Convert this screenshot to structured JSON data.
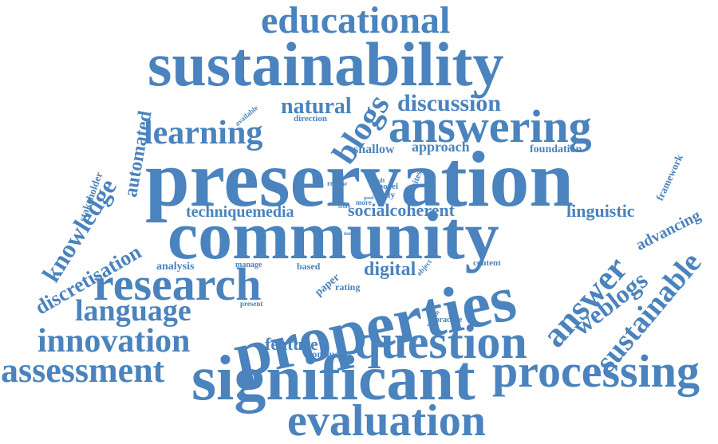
{
  "accent_color": "#4a83bd",
  "words": [
    "educational",
    "sustainability",
    "natural",
    "blogs",
    "discussion",
    "answering",
    "available",
    "direction",
    "learning",
    "automated",
    "shallow",
    "approach",
    "foundation",
    "stakeholder",
    "preservation",
    "framework",
    "result",
    "review",
    "novel",
    "websites",
    "body",
    "more",
    "knowledge",
    "score",
    "good",
    "techniquemedia",
    "socialcoherent",
    "linguistic",
    "advancing",
    "community",
    "user",
    "discretisation",
    "answer",
    "sustainable",
    "analysis",
    "manage",
    "based",
    "digital",
    "object",
    "content",
    "paper",
    "research",
    "rating",
    "weblogs",
    "language",
    "properties",
    "present",
    "system",
    "practice",
    "innovation",
    "feature",
    "question",
    "conclude",
    "assessment",
    "processing",
    "significant",
    "evaluation"
  ]
}
